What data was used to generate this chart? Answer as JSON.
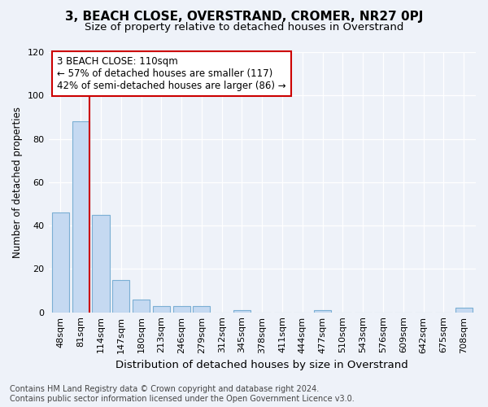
{
  "title": "3, BEACH CLOSE, OVERSTRAND, CROMER, NR27 0PJ",
  "subtitle": "Size of property relative to detached houses in Overstrand",
  "xlabel": "Distribution of detached houses by size in Overstrand",
  "ylabel": "Number of detached properties",
  "categories": [
    "48sqm",
    "81sqm",
    "114sqm",
    "147sqm",
    "180sqm",
    "213sqm",
    "246sqm",
    "279sqm",
    "312sqm",
    "345sqm",
    "378sqm",
    "411sqm",
    "444sqm",
    "477sqm",
    "510sqm",
    "543sqm",
    "576sqm",
    "609sqm",
    "642sqm",
    "675sqm",
    "708sqm"
  ],
  "values": [
    46,
    88,
    45,
    15,
    6,
    3,
    3,
    3,
    0,
    1,
    0,
    0,
    0,
    1,
    0,
    0,
    0,
    0,
    0,
    0,
    2
  ],
  "bar_color": "#c5d9f1",
  "bar_edge_color": "#7bafd4",
  "property_line_color": "#cc0000",
  "annotation_text": "3 BEACH CLOSE: 110sqm\n← 57% of detached houses are smaller (117)\n42% of semi-detached houses are larger (86) →",
  "annotation_box_color": "#ffffff",
  "annotation_box_edge_color": "#cc0000",
  "ylim": [
    0,
    120
  ],
  "yticks": [
    0,
    20,
    40,
    60,
    80,
    100,
    120
  ],
  "footer_text": "Contains HM Land Registry data © Crown copyright and database right 2024.\nContains public sector information licensed under the Open Government Licence v3.0.",
  "title_fontsize": 11,
  "subtitle_fontsize": 9.5,
  "xlabel_fontsize": 9.5,
  "ylabel_fontsize": 8.5,
  "tick_fontsize": 8,
  "annotation_fontsize": 8.5,
  "footer_fontsize": 7,
  "background_color": "#eef2f9"
}
